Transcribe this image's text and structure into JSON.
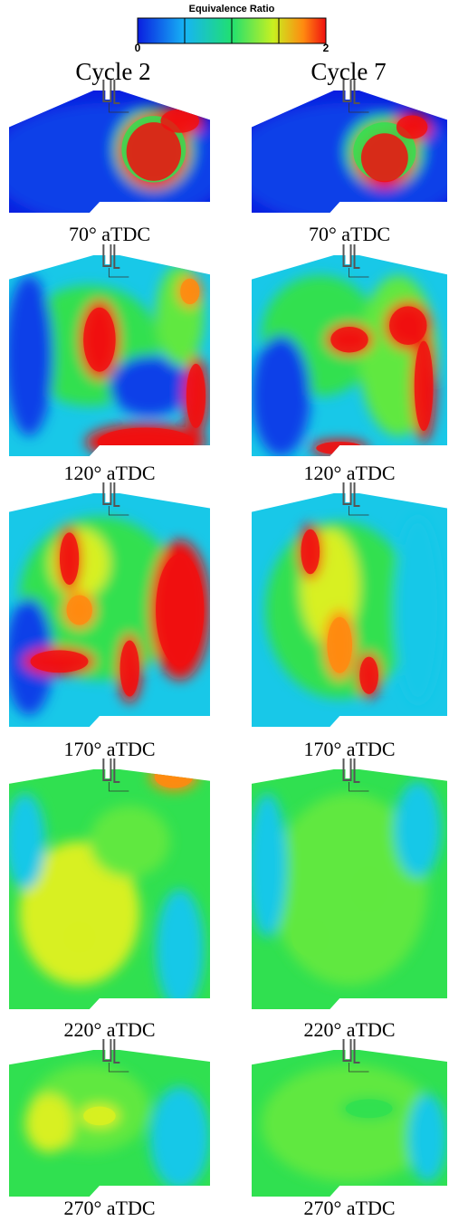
{
  "colorbar": {
    "title": "Equivalence Ratio",
    "ticks": [
      0,
      2
    ]
  },
  "columns": [
    "Cycle 2",
    "Cycle 7"
  ],
  "rows": [
    [
      "70° aTDC",
      "70° aTDC"
    ],
    [
      "120° aTDC",
      "120° aTDC"
    ],
    [
      "170° aTDC",
      "170° aTDC"
    ],
    [
      "220° aTDC",
      "220° aTDC"
    ],
    [
      "270° aTDC",
      "270° aTDC"
    ]
  ]
}
